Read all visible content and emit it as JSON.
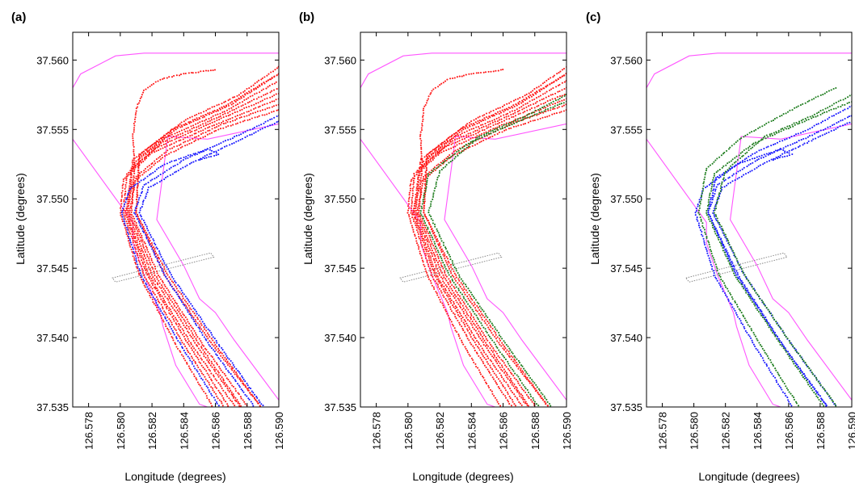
{
  "figure": {
    "xlabel": "Longitude (degrees)",
    "ylabel": "Latitude (degrees)",
    "xticks": [
      "126.578",
      "126.580",
      "126.582",
      "126.584",
      "126.586",
      "126.588",
      "126.590"
    ],
    "yticks": [
      "37.560",
      "37.555",
      "37.550",
      "37.545",
      "37.540",
      "37.535"
    ]
  },
  "colors": {
    "red": "#ff1a1a",
    "blue": "#1a1aff",
    "green": "#1e7d1e",
    "boundary": "#ff55ff",
    "gate": "#888888"
  },
  "chart_data": [
    {
      "panel": "(a)",
      "type": "scatter",
      "xlabel": "Longitude (degrees)",
      "ylabel": "Latitude (degrees)",
      "xlim": [
        126.577,
        126.59
      ],
      "ylim": [
        37.535,
        37.562
      ],
      "series": [
        {
          "name": "red tracks",
          "color": "red"
        },
        {
          "name": "blue tracks",
          "color": "blue"
        }
      ]
    },
    {
      "panel": "(b)",
      "type": "scatter",
      "xlabel": "Longitude (degrees)",
      "ylabel": "Latitude (degrees)",
      "xlim": [
        126.577,
        126.59
      ],
      "ylim": [
        37.535,
        37.562
      ],
      "series": [
        {
          "name": "red tracks",
          "color": "red"
        },
        {
          "name": "green tracks",
          "color": "green"
        }
      ]
    },
    {
      "panel": "(c)",
      "type": "scatter",
      "xlabel": "Longitude (degrees)",
      "ylabel": "Latitude (degrees)",
      "xlim": [
        126.577,
        126.59
      ],
      "ylim": [
        37.535,
        37.562
      ],
      "series": [
        {
          "name": "green tracks",
          "color": "green"
        },
        {
          "name": "blue tracks",
          "color": "blue"
        }
      ]
    }
  ],
  "channel": {
    "left_bank": [
      [
        126.577,
        37.5543
      ],
      [
        126.5808,
        37.5483
      ],
      [
        126.5808,
        37.5468
      ],
      [
        126.5815,
        37.5445
      ],
      [
        126.5825,
        37.5418
      ],
      [
        126.5827,
        37.5408
      ],
      [
        126.5835,
        37.538
      ],
      [
        126.585,
        37.5352
      ],
      [
        126.5855,
        37.535
      ]
    ],
    "right_bank": [
      [
        126.59,
        37.5554
      ],
      [
        126.5855,
        37.5543
      ],
      [
        126.583,
        37.5545
      ],
      [
        126.5823,
        37.5485
      ],
      [
        126.584,
        37.5452
      ],
      [
        126.585,
        37.5428
      ],
      [
        126.586,
        37.5418
      ],
      [
        126.5872,
        37.5398
      ],
      [
        126.59,
        37.5355
      ]
    ],
    "top_bank": [
      [
        126.577,
        37.558
      ],
      [
        126.5775,
        37.559
      ],
      [
        126.5797,
        37.5603
      ],
      [
        126.5815,
        37.5605
      ],
      [
        126.59,
        37.5605
      ]
    ]
  },
  "gate": [
    [
      126.5795,
      37.5443
    ],
    [
      126.5857,
      37.5461
    ],
    [
      126.5859,
      37.5458
    ],
    [
      126.5797,
      37.544
    ]
  ],
  "tracks": [
    {
      "path": [
        [
          126.5888,
          37.5351
        ],
        [
          126.586,
          37.5395
        ],
        [
          126.583,
          37.5445
        ],
        [
          126.581,
          37.549
        ],
        [
          126.5812,
          37.553
        ],
        [
          126.5835,
          37.555
        ],
        [
          126.587,
          37.5568
        ],
        [
          126.59,
          37.559
        ]
      ]
    },
    {
      "path": [
        [
          126.588,
          37.5351
        ],
        [
          126.5852,
          37.5395
        ],
        [
          126.5824,
          37.5445
        ],
        [
          126.5807,
          37.549
        ],
        [
          126.5809,
          37.5526
        ],
        [
          126.583,
          37.5545
        ],
        [
          126.5866,
          37.5563
        ],
        [
          126.59,
          37.5585
        ]
      ]
    },
    {
      "path": [
        [
          126.5872,
          37.5351
        ],
        [
          126.5845,
          37.5395
        ],
        [
          126.5818,
          37.5445
        ],
        [
          126.5804,
          37.549
        ],
        [
          126.5807,
          37.5522
        ],
        [
          126.5827,
          37.5541
        ],
        [
          126.5862,
          37.5559
        ],
        [
          126.59,
          37.558
        ]
      ]
    },
    {
      "path": [
        [
          126.5865,
          37.5351
        ],
        [
          126.584,
          37.5395
        ],
        [
          126.5815,
          37.5445
        ],
        [
          126.5802,
          37.549
        ],
        [
          126.5804,
          37.5518
        ],
        [
          126.5823,
          37.5537
        ],
        [
          126.5858,
          37.5555
        ],
        [
          126.59,
          37.5576
        ]
      ]
    },
    {
      "path": [
        [
          126.5858,
          37.5351
        ],
        [
          126.5835,
          37.5395
        ],
        [
          126.5812,
          37.5445
        ],
        [
          126.58,
          37.549
        ],
        [
          126.5802,
          37.5514
        ],
        [
          126.582,
          37.5533
        ],
        [
          126.5855,
          37.5551
        ],
        [
          126.59,
          37.5572
        ]
      ]
    },
    {
      "path": [
        [
          126.5876,
          37.5351
        ],
        [
          126.585,
          37.5395
        ],
        [
          126.5822,
          37.5445
        ],
        [
          126.5806,
          37.549
        ],
        [
          126.581,
          37.5516
        ],
        [
          126.583,
          37.5535
        ],
        [
          126.5865,
          37.5554
        ],
        [
          126.59,
          37.5568
        ]
      ]
    },
    {
      "path": [
        [
          126.5868,
          37.5351
        ],
        [
          126.5843,
          37.5395
        ],
        [
          126.5817,
          37.5445
        ],
        [
          126.5803,
          37.549
        ],
        [
          126.5808,
          37.5512
        ],
        [
          126.5828,
          37.5531
        ],
        [
          126.5862,
          37.555
        ],
        [
          126.59,
          37.5564
        ]
      ]
    },
    {
      "path": [
        [
          126.5884,
          37.5351
        ],
        [
          126.5856,
          37.5395
        ],
        [
          126.5828,
          37.5445
        ],
        [
          126.5809,
          37.549
        ],
        [
          126.5815,
          37.551
        ],
        [
          126.584,
          37.5528
        ],
        [
          126.5875,
          37.5546
        ],
        [
          126.59,
          37.556
        ]
      ]
    },
    {
      "path": [
        [
          126.589,
          37.5351
        ],
        [
          126.5862,
          37.5395
        ],
        [
          126.5832,
          37.5445
        ],
        [
          126.5812,
          37.549
        ],
        [
          126.5818,
          37.5508
        ],
        [
          126.5845,
          37.5526
        ],
        [
          126.588,
          37.5545
        ],
        [
          126.59,
          37.5556
        ]
      ]
    },
    {
      "path": [
        [
          126.5862,
          37.5351
        ],
        [
          126.5838,
          37.5395
        ],
        [
          126.5813,
          37.5445
        ],
        [
          126.5801,
          37.549
        ],
        [
          126.5806,
          37.5507
        ],
        [
          126.5828,
          37.5525
        ],
        [
          126.5855,
          37.5536
        ],
        [
          126.5862,
          37.5532
        ],
        [
          126.585,
          37.5528
        ]
      ]
    },
    {
      "path": [
        [
          126.5809,
          37.552
        ],
        [
          126.5808,
          37.5545
        ],
        [
          126.581,
          37.5565
        ],
        [
          126.5815,
          37.5578
        ],
        [
          126.5825,
          37.5586
        ],
        [
          126.584,
          37.559
        ],
        [
          126.586,
          37.5593
        ]
      ]
    },
    {
      "path": [
        [
          126.5888,
          37.5351
        ],
        [
          126.5858,
          37.5395
        ],
        [
          126.5828,
          37.5445
        ],
        [
          126.581,
          37.549
        ],
        [
          126.5812,
          37.5532
        ],
        [
          126.584,
          37.5556
        ],
        [
          126.5875,
          37.5575
        ],
        [
          126.59,
          37.5595
        ]
      ]
    },
    {
      "path": [
        [
          126.5875,
          37.5351
        ],
        [
          126.5848,
          37.5395
        ],
        [
          126.582,
          37.5445
        ],
        [
          126.5805,
          37.549
        ],
        [
          126.5808,
          37.5528
        ],
        [
          126.5833,
          37.555
        ],
        [
          126.5868,
          37.5568
        ],
        [
          126.59,
          37.559
        ]
      ]
    },
    {
      "path": [
        [
          126.589,
          37.5351
        ],
        [
          126.5862,
          37.5395
        ],
        [
          126.5832,
          37.5445
        ],
        [
          126.5813,
          37.549
        ],
        [
          126.582,
          37.552
        ],
        [
          126.5845,
          37.5545
        ],
        [
          126.5875,
          37.556
        ],
        [
          126.59,
          37.5575
        ]
      ]
    },
    {
      "path": [
        [
          126.5882,
          37.5351
        ],
        [
          126.5855,
          37.5395
        ],
        [
          126.5826,
          37.5445
        ],
        [
          126.5808,
          37.549
        ],
        [
          126.5813,
          37.5518
        ],
        [
          126.5838,
          37.554
        ],
        [
          126.587,
          37.5556
        ],
        [
          126.59,
          37.557
        ]
      ]
    },
    {
      "path": [
        [
          126.5884,
          37.5351
        ],
        [
          126.5856,
          37.5395
        ],
        [
          126.5827,
          37.5445
        ],
        [
          126.5809,
          37.549
        ],
        [
          126.5814,
          37.5515
        ],
        [
          126.584,
          37.5534
        ],
        [
          126.5872,
          37.555
        ],
        [
          126.59,
          37.5567
        ]
      ]
    },
    {
      "path": [
        [
          126.5866,
          37.5351
        ],
        [
          126.5842,
          37.5395
        ],
        [
          126.5816,
          37.5445
        ],
        [
          126.5803,
          37.549
        ],
        [
          126.5808,
          37.5522
        ],
        [
          126.583,
          37.5544
        ],
        [
          126.5865,
          37.5566
        ],
        [
          126.589,
          37.558
        ]
      ]
    }
  ],
  "panel_tracks": [
    {
      "red": [
        0,
        1,
        2,
        3,
        4,
        5,
        6,
        10,
        11,
        12
      ],
      "blue": [
        7,
        8,
        9
      ],
      "green": []
    },
    {
      "red": [
        0,
        1,
        2,
        3,
        4,
        5,
        6,
        10,
        11,
        12
      ],
      "blue": [],
      "green": [
        13,
        14
      ]
    },
    {
      "red": [],
      "blue": [
        7,
        8,
        9,
        15
      ],
      "green": [
        13,
        14,
        16
      ]
    }
  ]
}
